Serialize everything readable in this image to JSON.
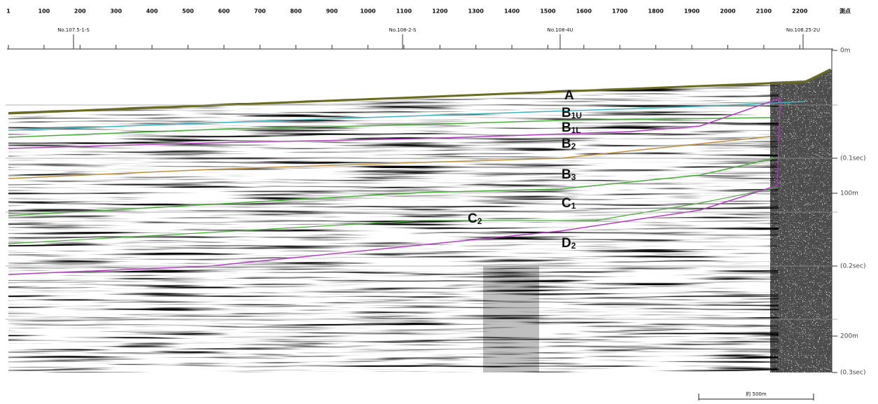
{
  "shot_points": {
    "values": [
      1,
      100,
      200,
      300,
      400,
      500,
      600,
      700,
      800,
      900,
      1000,
      1100,
      1200,
      1300,
      1400,
      1500,
      1600,
      1700,
      1800,
      1900,
      2000,
      2100,
      2200
    ],
    "unit_label": "測点"
  },
  "boreholes": [
    "No.107.5-1-S",
    "No.108-2-S",
    "No.108-4U",
    "No.108.25-2U"
  ],
  "depth_labels": [
    "0m",
    "(0.1sec)",
    "100m",
    "(0.2sec)",
    "200m",
    "(0.3sec)"
  ],
  "layers": [
    {
      "letter": "A"
    },
    {
      "letter": "B",
      "sub": "1U"
    },
    {
      "letter": "B",
      "sub": "1L"
    },
    {
      "letter": "B",
      "sub": "2"
    },
    {
      "letter": "B",
      "sub": "3"
    },
    {
      "letter": "C",
      "sub": "1"
    },
    {
      "letter": "C",
      "sub": "2"
    },
    {
      "letter": "D",
      "sub": "2"
    }
  ],
  "scale_bar": "約 500m"
}
